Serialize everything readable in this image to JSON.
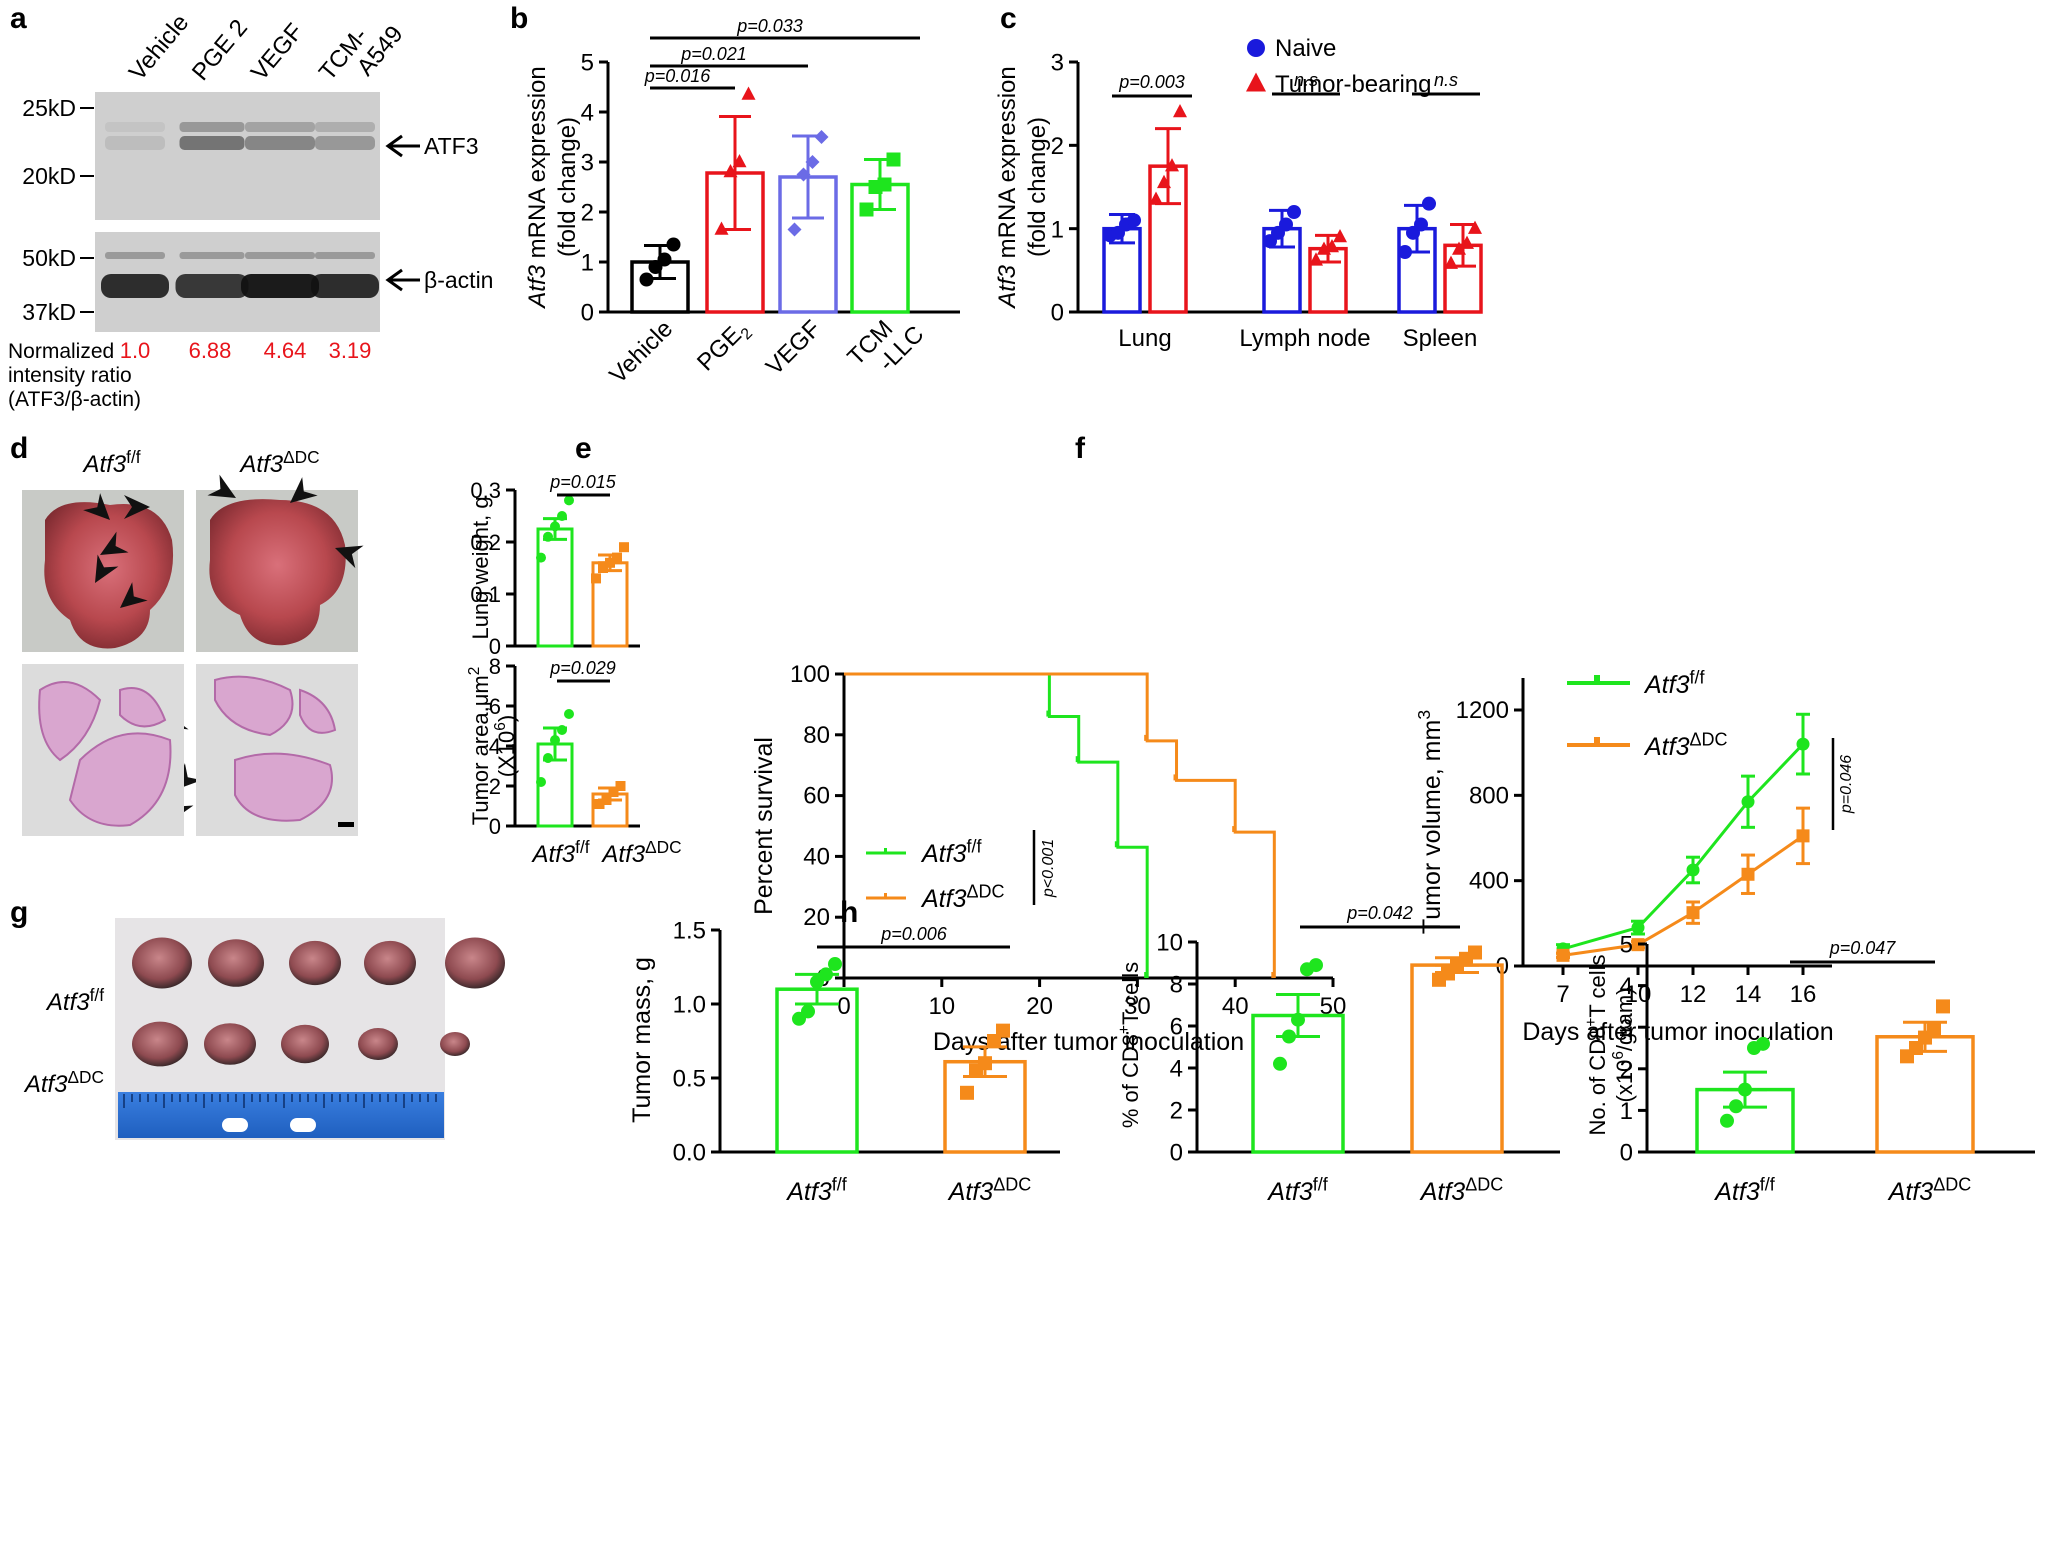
{
  "colors": {
    "black": "#000000",
    "red": "#e8141b",
    "blue": "#1a1adc",
    "purple": "#6b6be6",
    "green": "#1ee51e",
    "orange": "#f58a1a",
    "ratio_red": "#e8141b"
  },
  "a": {
    "letter": "a",
    "lanes": [
      "Vehicle",
      "PGE 2",
      "VEGF",
      "TCM-\nA549"
    ],
    "markers_top": [
      "25kD",
      "20kD"
    ],
    "markers_bottom": [
      "50kD",
      "37kD"
    ],
    "band_labels": [
      "ATF3",
      "β-actin"
    ],
    "ratio_label": "Normalized\nintensity ratio\n(ATF3/β-actin)",
    "ratios": [
      "1.0",
      "6.88",
      "4.64",
      "3.19"
    ]
  },
  "b": {
    "letter": "b",
    "ylabel_italic": "Atf3",
    "ylabel_rest": " mRNA expression",
    "ylabel2": "(fold change)",
    "yticks": [
      "0",
      "1",
      "2",
      "3",
      "4",
      "5"
    ],
    "chart_data": {
      "type": "bar",
      "categories": [
        "Vehicle",
        "PGE2",
        "VEGF",
        "TCM\n-LLC"
      ],
      "values": [
        1.0,
        2.78,
        2.7,
        2.55
      ],
      "errors": [
        0.33,
        1.13,
        0.82,
        0.5
      ],
      "points": [
        [
          0.65,
          0.9,
          1.05,
          1.35
        ],
        [
          1.65,
          2.8,
          3.0,
          4.35
        ],
        [
          1.65,
          2.75,
          3.0,
          3.5
        ],
        [
          2.05,
          2.5,
          2.55,
          3.05
        ]
      ],
      "ylim": [
        0,
        5
      ],
      "comparisons": [
        {
          "from": 0,
          "to": 1,
          "p": "p=0.016"
        },
        {
          "from": 0,
          "to": 2,
          "p": "p=0.021"
        },
        {
          "from": 0,
          "to": 3,
          "p": "p=0.033"
        }
      ]
    }
  },
  "c": {
    "letter": "c",
    "ylabel_italic": "Atf3",
    "ylabel_rest": " mRNA expression",
    "ylabel2": "(fold change)",
    "yticks": [
      "0",
      "1",
      "2",
      "3"
    ],
    "chart_data": {
      "type": "bar",
      "categories": [
        "Lung",
        "Lymph node",
        "Spleen"
      ],
      "series": [
        {
          "name": "Naive",
          "values": [
            1.0,
            1.0,
            1.0
          ],
          "errors": [
            0.17,
            0.22,
            0.28
          ],
          "points": [
            [
              0.92,
              0.95,
              1.05,
              1.1
            ],
            [
              0.85,
              0.95,
              1.05,
              1.2
            ],
            [
              0.72,
              0.95,
              1.05,
              1.3
            ]
          ]
        },
        {
          "name": "Tumor-bearing",
          "values": [
            1.75,
            0.76,
            0.8
          ],
          "errors": [
            0.45,
            0.16,
            0.25
          ],
          "points": [
            [
              1.35,
              1.55,
              1.75,
              2.4
            ],
            [
              0.62,
              0.75,
              0.78,
              0.9
            ],
            [
              0.58,
              0.75,
              0.82,
              1.0
            ]
          ]
        }
      ],
      "ylim": [
        0,
        3
      ],
      "comparisons": [
        "p=0.003",
        "n.s",
        "n.s"
      ]
    }
  },
  "d": {
    "letter": "d",
    "col_labels": [
      "Atf3",
      "f/f",
      "Atf3",
      "ΔDC"
    ],
    "top": {
      "ylabel": "Lung weight, g",
      "yticks": [
        "0",
        "0.1",
        "0.2",
        "0.3"
      ],
      "p": "p=0.015",
      "chart_data": {
        "type": "bar",
        "categories": [
          "Atf3f/f",
          "Atf3ΔDC"
        ],
        "values": [
          0.225,
          0.16
        ],
        "errors": [
          0.02,
          0.015
        ],
        "points": [
          [
            0.17,
            0.21,
            0.23,
            0.25,
            0.28
          ],
          [
            0.13,
            0.15,
            0.16,
            0.17,
            0.19
          ]
        ],
        "ylim": [
          0,
          0.3
        ]
      }
    },
    "bottom": {
      "ylabel": "Tumor area,μm",
      "ylabel2": "(X10",
      "yticks": [
        "0",
        "2",
        "4",
        "6",
        "8"
      ],
      "p": "p=0.029",
      "chart_data": {
        "type": "bar",
        "categories": [
          "Atf3f/f",
          "Atf3ΔDC"
        ],
        "values": [
          4.1,
          1.6
        ],
        "errors": [
          0.8,
          0.3
        ],
        "points": [
          [
            2.2,
            3.4,
            4.3,
            4.8,
            5.6
          ],
          [
            1.1,
            1.3,
            1.7,
            2.0
          ]
        ],
        "ylim": [
          0,
          8
        ]
      }
    },
    "xlabels": [
      "Atf3",
      "f/f",
      "Atf3",
      "ΔDC"
    ]
  },
  "e": {
    "letter": "e",
    "ylabel": "Percent survival",
    "xlabel": "Days after tumor inoculation",
    "xticks": [
      "0",
      "10",
      "20",
      "30",
      "40",
      "50"
    ],
    "yticks": [
      "0",
      "20",
      "40",
      "60",
      "80",
      "100"
    ],
    "legend": [
      "Atf3",
      "f/f",
      "Atf3",
      "ΔDC"
    ],
    "p": "p<0.001",
    "chart_data": {
      "type": "line",
      "xlim": [
        0,
        50
      ],
      "ylim": [
        0,
        100
      ],
      "series": [
        {
          "x": [
            0,
            21,
            21,
            24,
            24,
            28,
            28,
            31,
            31
          ],
          "y": [
            100,
            100,
            86,
            86,
            71,
            71,
            43,
            43,
            0
          ]
        },
        {
          "x": [
            0,
            31,
            31,
            34,
            34,
            40,
            40,
            44,
            44
          ],
          "y": [
            100,
            100,
            78,
            78,
            65,
            65,
            48,
            48,
            0
          ]
        }
      ]
    }
  },
  "f": {
    "letter": "f",
    "ylabel": "Tumor volume, mm",
    "ylabel_sup": "3",
    "xlabel": "Days after tumor inoculation",
    "xticks": [
      "7",
      "10",
      "12",
      "14",
      "16"
    ],
    "yticks": [
      "0",
      "400",
      "800",
      "1200"
    ],
    "legend": [
      "Atf3",
      "f/f",
      "Atf3",
      "ΔDC"
    ],
    "p": "p=0.046",
    "chart_data": {
      "type": "line",
      "x": [
        7,
        10,
        12,
        14,
        16
      ],
      "ylim": [
        0,
        1350
      ],
      "series": [
        {
          "values": [
            80,
            180,
            450,
            770,
            1040
          ],
          "errors": [
            20,
            30,
            60,
            120,
            140
          ]
        },
        {
          "values": [
            50,
            100,
            250,
            430,
            610
          ],
          "errors": [
            10,
            15,
            50,
            90,
            130
          ]
        }
      ]
    }
  },
  "g": {
    "letter": "g",
    "row_labels": [
      "Atf3",
      "f/f",
      "Atf3",
      "ΔDC"
    ],
    "ylabel": "Tumor mass, g",
    "yticks": [
      "0.0",
      "0.5",
      "1.0",
      "1.5"
    ],
    "p": "p=0.006",
    "chart_data": {
      "type": "bar",
      "categories": [
        "Atf3f/f",
        "Atf3ΔDC"
      ],
      "values": [
        1.1,
        0.61
      ],
      "errors": [
        0.1,
        0.1
      ],
      "points": [
        [
          0.9,
          0.95,
          1.15,
          1.2,
          1.27
        ],
        [
          0.4,
          0.55,
          0.6,
          0.75,
          0.82
        ]
      ],
      "ylim": [
        0,
        1.5
      ]
    },
    "xlabels": [
      "Atf3",
      "f/f",
      "Atf3",
      "ΔDC"
    ]
  },
  "h": {
    "letter": "h",
    "left": {
      "ylabel": "% of CD8",
      "ylabel_sup": "+",
      "ylabel_rest": "T cells",
      "yticks": [
        "0",
        "2",
        "4",
        "6",
        "8",
        "10"
      ],
      "p": "p=0.042",
      "chart_data": {
        "type": "bar",
        "categories": [
          "Atf3f/f",
          "Atf3ΔDC"
        ],
        "values": [
          6.5,
          8.9
        ],
        "errors": [
          1.0,
          0.35
        ],
        "points": [
          [
            4.2,
            5.5,
            6.3,
            8.7,
            8.9
          ],
          [
            8.2,
            8.5,
            8.9,
            9.2,
            9.5
          ]
        ],
        "ylim": [
          0,
          10
        ]
      }
    },
    "right": {
      "ylabel": "No. of CD8",
      "ylabel_sup": "+",
      "ylabel_rest": "T cells",
      "ylabel2": "(x10",
      "ylabel2_sup": "6",
      "ylabel2_rest": "/gram)",
      "yticks": [
        "0",
        "1",
        "2",
        "3",
        "4",
        "5"
      ],
      "p": "p=0.047",
      "chart_data": {
        "type": "bar",
        "categories": [
          "Atf3f/f",
          "Atf3ΔDC"
        ],
        "values": [
          1.5,
          2.77
        ],
        "errors": [
          0.42,
          0.35
        ],
        "points": [
          [
            0.75,
            1.1,
            1.5,
            2.5,
            2.6
          ],
          [
            2.3,
            2.5,
            2.75,
            2.95,
            3.5
          ]
        ],
        "ylim": [
          0,
          5
        ]
      }
    },
    "xlabels": [
      "Atf3",
      "f/f",
      "Atf3",
      "ΔDC"
    ]
  }
}
